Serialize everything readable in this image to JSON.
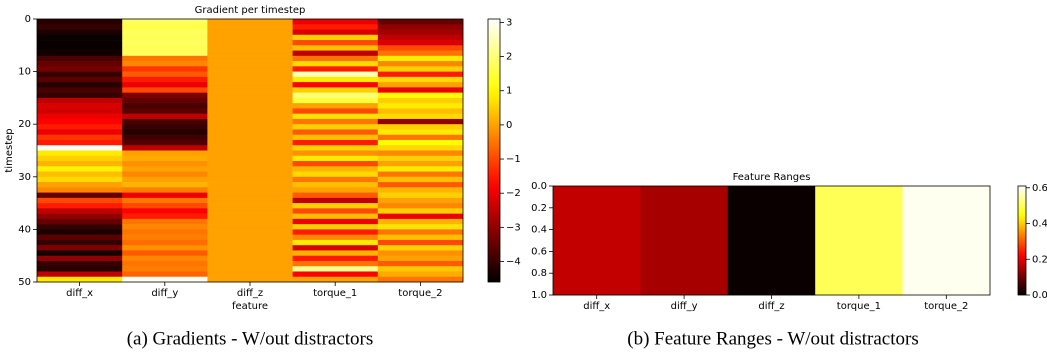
{
  "chart_data": [
    {
      "type": "heatmap",
      "title": "Gradient per timestep",
      "x_label": "feature",
      "y_label": "timestep",
      "caption": "(a) Gradients - W/out distractors",
      "colormap": "hot",
      "categories": [
        "diff_x",
        "diff_y",
        "diff_z",
        "torque_1",
        "torque_2"
      ],
      "values": [
        [
          -4.2,
          -4.0,
          -4.3,
          -4.5,
          -4.5,
          -4.5,
          -4.4,
          -3.8,
          -3.5,
          -3.3,
          -4.0,
          -3.6,
          -4.2,
          -3.8,
          -4.0,
          -2.5,
          -2.2,
          -2.3,
          -2.0,
          -1.8,
          -1.5,
          -2.0,
          -1.2,
          -1.5,
          3.0,
          0.8,
          0.5,
          0.2,
          0.9,
          0.3,
          0.6,
          0.0,
          -0.3,
          -3.5,
          -1.0,
          -1.5,
          -2.5,
          -3.0,
          -3.5,
          -4.0,
          -4.3,
          -3.6,
          -4.0,
          -3.2,
          -4.4,
          -3.0,
          -4.0,
          -4.2,
          -2.5,
          0.8
        ],
        [
          1.8,
          1.6,
          1.8,
          1.7,
          1.8,
          1.7,
          1.8,
          -0.5,
          -0.3,
          -1.2,
          -0.8,
          -1.5,
          -2.0,
          -1.0,
          -3.2,
          -3.5,
          -3.8,
          -3.6,
          -2.5,
          -3.8,
          -4.0,
          -4.2,
          -3.9,
          -3.7,
          -2.5,
          0.0,
          0.1,
          -0.2,
          0.0,
          -0.3,
          0.0,
          0.2,
          -0.4,
          -2.0,
          -0.5,
          -1.0,
          -1.8,
          -1.5,
          -0.5,
          -0.3,
          -0.5,
          -0.4,
          -0.6,
          -0.2,
          -0.8,
          -0.3,
          -0.5,
          -0.4,
          -0.7,
          3.0
        ],
        [
          0,
          0,
          0,
          0,
          0,
          0,
          0,
          0,
          0,
          0,
          0,
          0,
          0,
          0,
          0,
          0,
          0,
          0,
          0,
          0,
          0,
          0,
          0,
          0,
          0,
          0,
          0,
          0,
          0,
          0,
          0,
          0,
          0,
          0,
          0,
          0,
          0,
          0,
          0,
          0,
          0,
          0,
          0,
          0,
          0,
          0,
          0,
          0,
          0,
          0
        ],
        [
          -2.0,
          -1.5,
          -2.2,
          0.5,
          -1.0,
          0.3,
          -2.5,
          -0.5,
          0.6,
          -1.5,
          2.5,
          0.8,
          -1.8,
          0.5,
          2.0,
          1.5,
          0.0,
          -1.0,
          0.7,
          -0.5,
          0.5,
          -0.8,
          0.3,
          -1.5,
          0.5,
          -0.2,
          0.8,
          -1.0,
          0.2,
          0.6,
          -0.5,
          0.3,
          0.0,
          -0.8,
          -2.5,
          0.5,
          -1.0,
          0.3,
          -2.0,
          0.5,
          -1.5,
          -0.3,
          0.8,
          -2.2,
          0.2,
          -1.5,
          -0.5,
          2.2,
          -1.8,
          0.0
        ],
        [
          -3.5,
          -3.0,
          -2.8,
          -2.5,
          -2.2,
          -1.0,
          -0.5,
          0.8,
          -0.3,
          0.5,
          -1.5,
          0.6,
          0.0,
          -2.0,
          1.0,
          0.5,
          0.8,
          0.3,
          0.6,
          -3.0,
          0.5,
          0.8,
          -0.5,
          1.0,
          0.6,
          -0.3,
          0.5,
          0.0,
          0.8,
          -0.5,
          0.3,
          -0.8,
          0.2,
          0.5,
          0.0,
          -0.3,
          0.5,
          -2.0,
          0.2,
          0.7,
          -0.5,
          0.3,
          -1.0,
          0.5,
          -0.2,
          0.0,
          -0.8,
          0.4,
          0.1,
          -0.5
        ]
      ],
      "ylim": [
        0,
        50
      ],
      "y_inverted": true,
      "yticks": [
        0,
        10,
        20,
        30,
        40,
        50
      ],
      "zlim": [
        -4.6,
        3.1
      ],
      "zticks": [
        {
          "value": -4,
          "label": "−4"
        },
        {
          "value": -3,
          "label": "−3"
        },
        {
          "value": -2,
          "label": "−2"
        },
        {
          "value": -1,
          "label": "−1"
        },
        0,
        1,
        2,
        3
      ]
    },
    {
      "type": "heatmap",
      "title": "Feature Ranges",
      "caption": "(b) Feature Ranges - W/out distractors",
      "colormap": "hot",
      "categories": [
        "diff_x",
        "diff_y",
        "diff_z",
        "torque_1",
        "torque_2"
      ],
      "values": [
        [
          0.17
        ],
        [
          0.145
        ],
        [
          0.01
        ],
        [
          0.5
        ],
        [
          0.6
        ]
      ],
      "ylim": [
        0,
        1
      ],
      "y_inverted": true,
      "yticks": [
        {
          "value": 0,
          "label": "0.0"
        },
        {
          "value": 0.2,
          "label": "0.2"
        },
        {
          "value": 0.4,
          "label": "0.4"
        },
        {
          "value": 0.6,
          "label": "0.6"
        },
        {
          "value": 0.8,
          "label": "0.8"
        },
        {
          "value": 1,
          "label": "1.0"
        }
      ],
      "zlim": [
        0,
        0.61
      ],
      "zticks": [
        {
          "value": 0,
          "label": "0.0"
        },
        {
          "value": 0.2,
          "label": "0.2"
        },
        {
          "value": 0.4,
          "label": "0.4"
        },
        {
          "value": 0.6,
          "label": "0.6"
        }
      ]
    }
  ]
}
